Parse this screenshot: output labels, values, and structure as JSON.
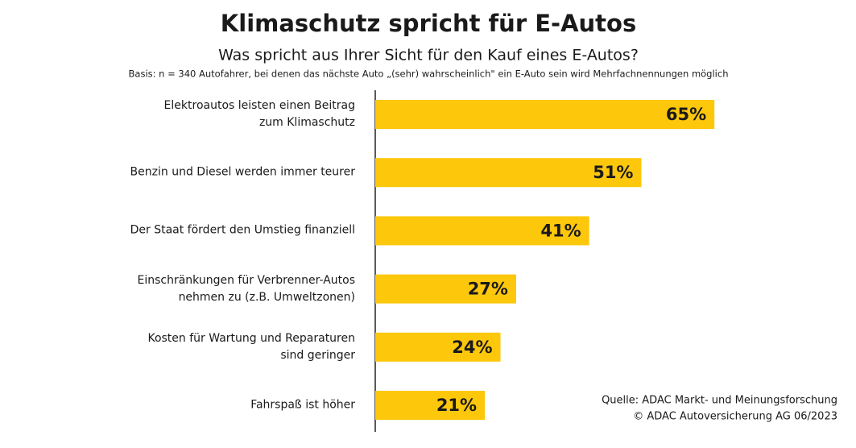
{
  "chart_data": {
    "type": "barh",
    "title": "Klimaschutz spricht für E-Autos",
    "subtitle": "Was spricht aus Ihrer Sicht für den Kauf eines E-Autos?",
    "note": "Basis: n = 340 Autofahrer, bei denen das nächste Auto „(sehr) wahrscheinlich\" ein E-Auto sein wird  Mehrfachnennungen möglich",
    "categories": [
      "Elektroautos leisten einen Beitrag\nzum Klimaschutz",
      "Benzin und Diesel werden immer teurer",
      "Der Staat fördert den Umstieg finanziell",
      "Einschränkungen für Verbrenner-Autos\nnehmen zu (z.B. Umweltzonen)",
      "Kosten für Wartung und Reparaturen\nsind geringer",
      "Fahrspaß ist höher"
    ],
    "values": [
      65,
      51,
      41,
      27,
      24,
      21
    ],
    "value_labels": [
      "65%",
      "51%",
      "41%",
      "27%",
      "24%",
      "21%"
    ],
    "color": "#fdc70c",
    "xlim": [
      0,
      100
    ],
    "source": [
      "Quelle: ADAC Markt- und Meinungsforschung",
      "© ADAC Autoversicherung AG 06/2023"
    ]
  }
}
